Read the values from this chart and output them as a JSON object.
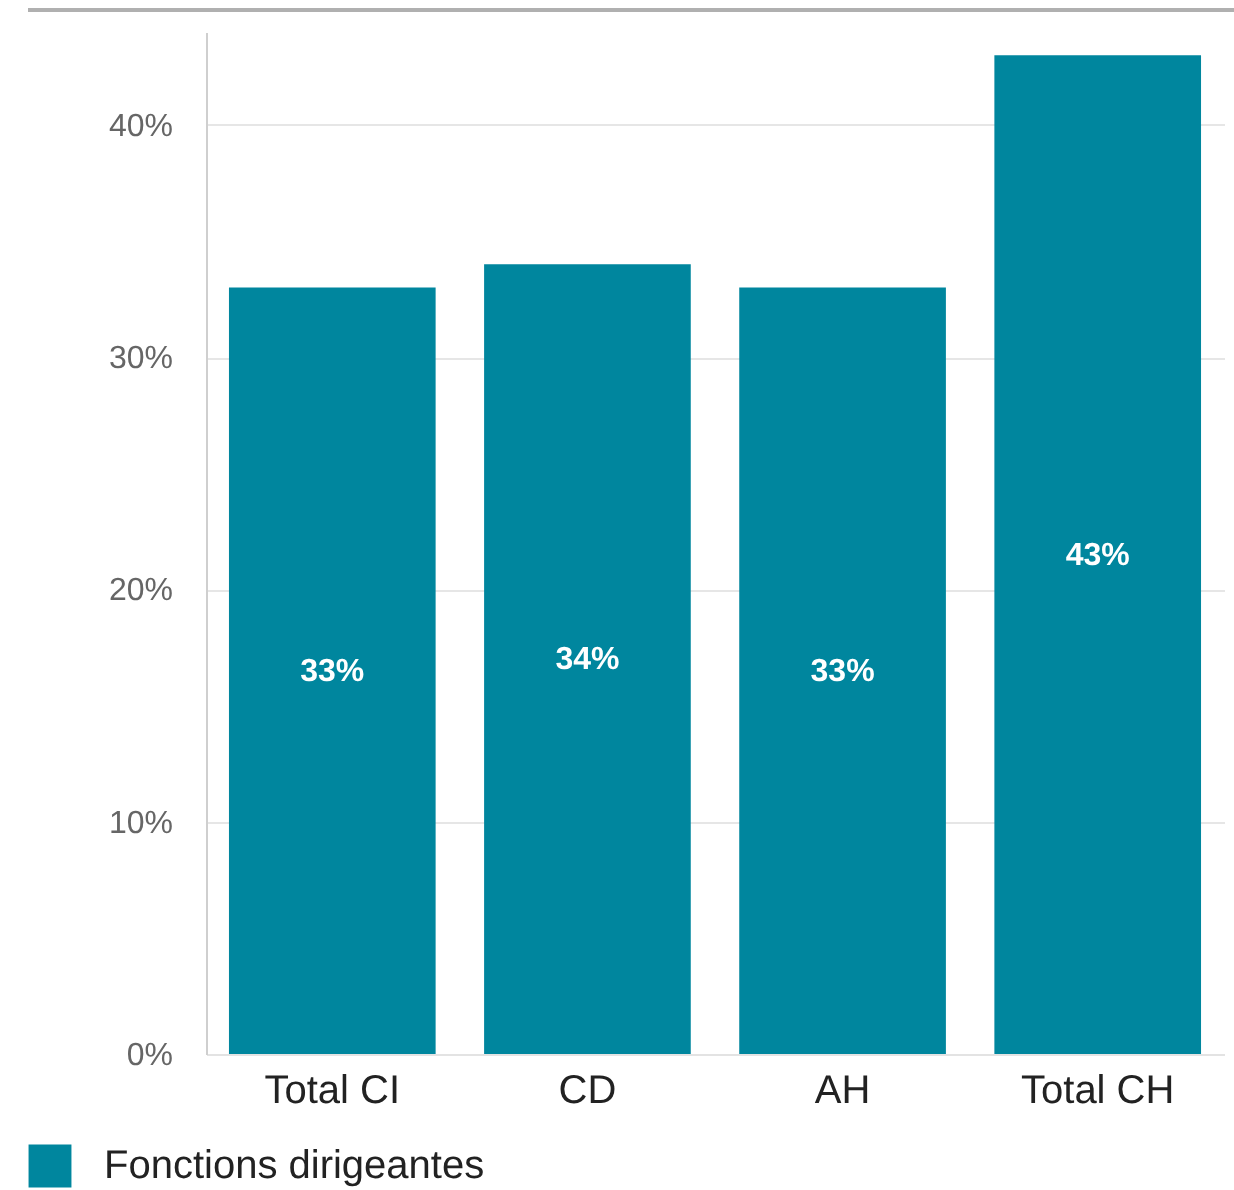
{
  "chart_data": {
    "type": "bar",
    "categories": [
      "Total CI",
      "CD",
      "AH",
      "Total CH"
    ],
    "series": [
      {
        "name": "Fonctions dirigeantes",
        "color": "#00869e",
        "values": [
          33,
          34,
          33,
          43
        ],
        "value_labels": [
          "33%",
          "34%",
          "33%",
          "43%"
        ]
      }
    ],
    "ylim": [
      0,
      44
    ],
    "yticks": [
      {
        "value": 0,
        "label": "0%"
      },
      {
        "value": 10,
        "label": "10%"
      },
      {
        "value": 20,
        "label": "20%"
      },
      {
        "value": 30,
        "label": "30%"
      },
      {
        "value": 40,
        "label": "40%"
      }
    ],
    "grid": "y",
    "legend": "bottom left"
  }
}
